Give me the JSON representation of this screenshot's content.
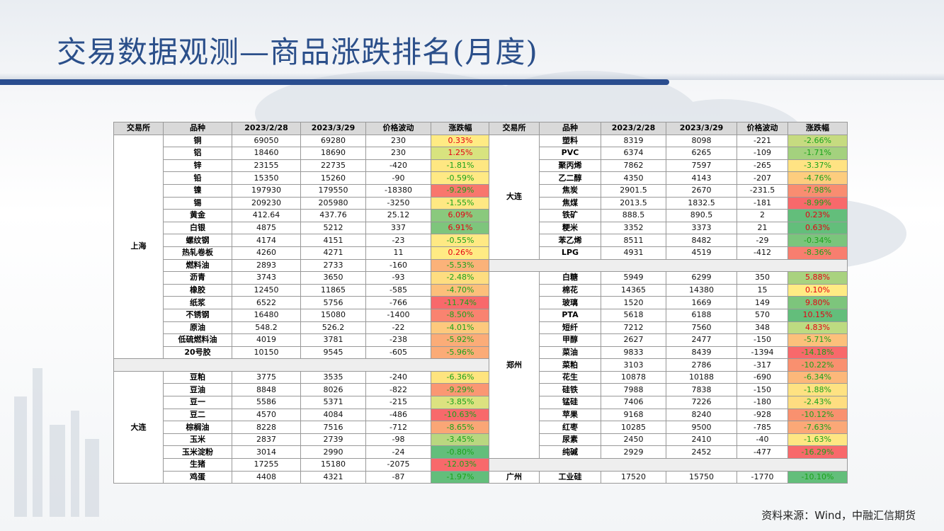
{
  "page": {
    "title": "交易数据观测—商品涨跌排名(月度)",
    "source": "资料来源：Wind，中融汇信期货"
  },
  "table": {
    "headers": [
      "交易所",
      "品种",
      "2023/2/28",
      "2023/3/29",
      "价格波动",
      "涨跌幅"
    ],
    "left": [
      {
        "exchange": "上海",
        "rows": [
          {
            "name": "铜",
            "a": "69050",
            "b": "69280",
            "chg": "230",
            "pct": "0.33%",
            "color": "#ffeb84"
          },
          {
            "name": "铝",
            "a": "18460",
            "b": "18690",
            "chg": "230",
            "pct": "1.25%",
            "color": "#d8e37f"
          },
          {
            "name": "锌",
            "a": "23155",
            "b": "22735",
            "chg": "-420",
            "pct": "-1.81%",
            "color": "#fee782"
          },
          {
            "name": "铅",
            "a": "15350",
            "b": "15260",
            "chg": "-90",
            "pct": "-0.59%",
            "color": "#ffe984"
          },
          {
            "name": "镍",
            "a": "197930",
            "b": "179550",
            "chg": "-18380",
            "pct": "-9.29%",
            "color": "#f8766d"
          },
          {
            "name": "锡",
            "a": "209230",
            "b": "205980",
            "chg": "-3250",
            "pct": "-1.55%",
            "color": "#fee883"
          },
          {
            "name": "黄金",
            "a": "412.64",
            "b": "437.76",
            "chg": "25.12",
            "pct": "6.09%",
            "color": "#8ac97d"
          },
          {
            "name": "白银",
            "a": "4875",
            "b": "5212",
            "chg": "337",
            "pct": "6.91%",
            "color": "#7ec57c"
          },
          {
            "name": "螺纹钢",
            "a": "4174",
            "b": "4151",
            "chg": "-23",
            "pct": "-0.55%",
            "color": "#ffe984"
          },
          {
            "name": "热轧卷板",
            "a": "4260",
            "b": "4271",
            "chg": "11",
            "pct": "0.26%",
            "color": "#ffeb84"
          },
          {
            "name": "燃料油",
            "a": "2893",
            "b": "2733",
            "chg": "-160",
            "pct": "-5.53%",
            "color": "#fbb279"
          },
          {
            "name": "沥青",
            "a": "3743",
            "b": "3650",
            "chg": "-93",
            "pct": "-2.48%",
            "color": "#fedd80"
          },
          {
            "name": "橡胶",
            "a": "12450",
            "b": "11865",
            "chg": "-585",
            "pct": "-4.70%",
            "color": "#fcbf7b"
          },
          {
            "name": "纸浆",
            "a": "6522",
            "b": "5756",
            "chg": "-766",
            "pct": "-11.74%",
            "color": "#f8696b"
          },
          {
            "name": "不锈钢",
            "a": "16480",
            "b": "15080",
            "chg": "-1400",
            "pct": "-8.50%",
            "color": "#f98370"
          },
          {
            "name": "原油",
            "a": "548.2",
            "b": "526.2",
            "chg": "-22",
            "pct": "-4.01%",
            "color": "#fdc97d"
          },
          {
            "name": "低硫燃料油",
            "a": "4019",
            "b": "3781",
            "chg": "-238",
            "pct": "-5.92%",
            "color": "#fbac78"
          },
          {
            "name": "20号胶",
            "a": "10150",
            "b": "9545",
            "chg": "-605",
            "pct": "-5.96%",
            "color": "#fbab77"
          }
        ]
      },
      {
        "exchange": "大连",
        "rows": [
          {
            "name": "豆粕",
            "a": "3775",
            "b": "3535",
            "chg": "-240",
            "pct": "-6.36%",
            "color": "#fee47f"
          },
          {
            "name": "豆油",
            "a": "8848",
            "b": "8026",
            "chg": "-822",
            "pct": "-9.29%",
            "color": "#fa9773"
          },
          {
            "name": "豆一",
            "a": "5586",
            "b": "5371",
            "chg": "-215",
            "pct": "-3.85%",
            "color": "#dce280"
          },
          {
            "name": "豆二",
            "a": "4570",
            "b": "4084",
            "chg": "-486",
            "pct": "-10.63%",
            "color": "#f8696b"
          },
          {
            "name": "棕榈油",
            "a": "8228",
            "b": "7516",
            "chg": "-712",
            "pct": "-8.65%",
            "color": "#faa676"
          },
          {
            "name": "玉米",
            "a": "2837",
            "b": "2739",
            "chg": "-98",
            "pct": "-3.45%",
            "color": "#b9d780"
          },
          {
            "name": "玉米淀粉",
            "a": "3014",
            "b": "2990",
            "chg": "-24",
            "pct": "-0.80%",
            "color": "#63be7b"
          },
          {
            "name": "生猪",
            "a": "17255",
            "b": "15180",
            "chg": "-2075",
            "pct": "-12.03%",
            "color": "#f8696b"
          },
          {
            "name": "鸡蛋",
            "a": "4408",
            "b": "4321",
            "chg": "-87",
            "pct": "-1.97%",
            "color": "#63be7b"
          }
        ]
      }
    ],
    "right": [
      {
        "exchange": "大连",
        "rows": [
          {
            "name": "塑料",
            "a": "8319",
            "b": "8098",
            "chg": "-221",
            "pct": "-2.66%",
            "color": "#c6db80"
          },
          {
            "name": "PVC",
            "a": "6374",
            "b": "6265",
            "chg": "-109",
            "pct": "-1.71%",
            "color": "#a4d17e"
          },
          {
            "name": "聚丙烯",
            "a": "7862",
            "b": "7597",
            "chg": "-265",
            "pct": "-3.37%",
            "color": "#ffe383"
          },
          {
            "name": "乙二醇",
            "a": "4350",
            "b": "4143",
            "chg": "-207",
            "pct": "-4.76%",
            "color": "#fdcd7e"
          },
          {
            "name": "焦炭",
            "a": "2901.5",
            "b": "2670",
            "chg": "-231.5",
            "pct": "-7.98%",
            "color": "#f98d71"
          },
          {
            "name": "焦煤",
            "a": "2013.5",
            "b": "1832.5",
            "chg": "-181",
            "pct": "-8.99%",
            "color": "#f8696b"
          },
          {
            "name": "铁矿",
            "a": "888.5",
            "b": "890.5",
            "chg": "2",
            "pct": "0.23%",
            "color": "#63be7b"
          },
          {
            "name": "粳米",
            "a": "3352",
            "b": "3373",
            "chg": "21",
            "pct": "0.63%",
            "color": "#63be7b"
          },
          {
            "name": "苯乙烯",
            "a": "8511",
            "b": "8482",
            "chg": "-29",
            "pct": "-0.34%",
            "color": "#7bc57c"
          },
          {
            "name": "LPG",
            "a": "4931",
            "b": "4519",
            "chg": "-412",
            "pct": "-8.36%",
            "color": "#f87e6f"
          }
        ]
      },
      {
        "exchange": "郑州",
        "rows": [
          {
            "name": "白糖",
            "a": "5949",
            "b": "6299",
            "chg": "350",
            "pct": "5.88%",
            "color": "#a9d27f"
          },
          {
            "name": "棉花",
            "a": "14365",
            "b": "14380",
            "chg": "15",
            "pct": "0.10%",
            "color": "#ffeb84"
          },
          {
            "name": "玻璃",
            "a": "1520",
            "b": "1669",
            "chg": "149",
            "pct": "9.80%",
            "color": "#7dc57c"
          },
          {
            "name": "PTA",
            "a": "5618",
            "b": "6188",
            "chg": "570",
            "pct": "10.15%",
            "color": "#63be7b"
          },
          {
            "name": "短纤",
            "a": "7212",
            "b": "7560",
            "chg": "348",
            "pct": "4.83%",
            "color": "#bddb81"
          },
          {
            "name": "甲醇",
            "a": "2627",
            "b": "2477",
            "chg": "-150",
            "pct": "-5.71%",
            "color": "#fcc07b"
          },
          {
            "name": "菜油",
            "a": "9833",
            "b": "8439",
            "chg": "-1394",
            "pct": "-14.18%",
            "color": "#f8696b"
          },
          {
            "name": "菜粕",
            "a": "3103",
            "b": "2786",
            "chg": "-317",
            "pct": "-10.22%",
            "color": "#f9906f"
          },
          {
            "name": "花生",
            "a": "10878",
            "b": "10188",
            "chg": "-690",
            "pct": "-6.34%",
            "color": "#fcb87a"
          },
          {
            "name": "硅铁",
            "a": "7988",
            "b": "7838",
            "chg": "-150",
            "pct": "-1.88%",
            "color": "#fee282"
          },
          {
            "name": "锰硅",
            "a": "7406",
            "b": "7226",
            "chg": "-180",
            "pct": "-2.43%",
            "color": "#fedd81"
          },
          {
            "name": "苹果",
            "a": "9168",
            "b": "8240",
            "chg": "-928",
            "pct": "-10.12%",
            "color": "#f9916f"
          },
          {
            "name": "红枣",
            "a": "10285",
            "b": "9500",
            "chg": "-785",
            "pct": "-7.63%",
            "color": "#fba877"
          },
          {
            "name": "尿素",
            "a": "2450",
            "b": "2410",
            "chg": "-40",
            "pct": "-1.63%",
            "color": "#fee683"
          },
          {
            "name": "纯碱",
            "a": "2929",
            "b": "2452",
            "chg": "-477",
            "pct": "-16.29%",
            "color": "#f8696b"
          }
        ]
      },
      {
        "exchange": "广州",
        "rows": [
          {
            "name": "工业硅",
            "a": "17520",
            "b": "15750",
            "chg": "-1770",
            "pct": "-10.10%",
            "color": "#63be7b"
          }
        ]
      }
    ]
  }
}
